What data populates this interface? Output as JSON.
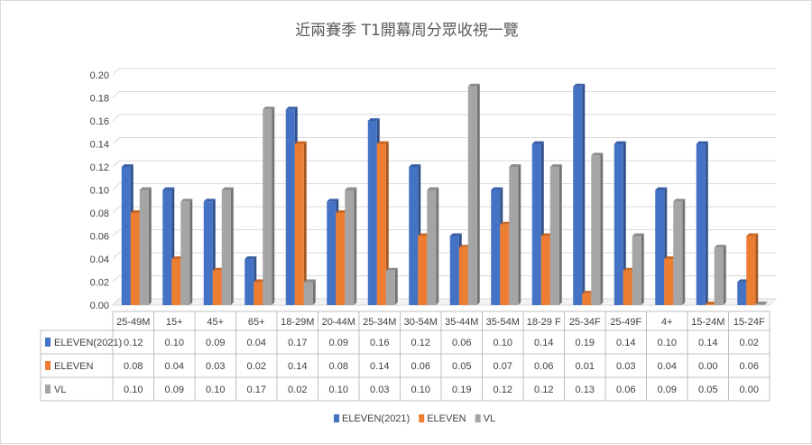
{
  "chart_data": {
    "type": "bar",
    "title": "近兩賽季 T1開幕周分眾收視一覽",
    "categories": [
      "25-49M",
      "15+",
      "45+",
      "65+",
      "18-29M",
      "20-44M",
      "25-34M",
      "30-54M",
      "35-44M",
      "35-54M",
      "18-29 F",
      "25-34F",
      "25-49F",
      "4+",
      "15-24M",
      "15-24F"
    ],
    "series": [
      {
        "name": "ELEVEN(2021)",
        "color": "#4472c4",
        "values": [
          0.12,
          0.1,
          0.09,
          0.04,
          0.17,
          0.09,
          0.16,
          0.12,
          0.06,
          0.1,
          0.14,
          0.19,
          0.14,
          0.1,
          0.14,
          0.02
        ]
      },
      {
        "name": "ELEVEN",
        "color": "#ed7d31",
        "values": [
          0.08,
          0.04,
          0.03,
          0.02,
          0.14,
          0.08,
          0.14,
          0.06,
          0.05,
          0.07,
          0.06,
          0.01,
          0.03,
          0.04,
          0.0,
          0.06
        ]
      },
      {
        "name": "VL",
        "color": "#a5a5a5",
        "values": [
          0.1,
          0.09,
          0.1,
          0.17,
          0.02,
          0.1,
          0.03,
          0.1,
          0.19,
          0.12,
          0.12,
          0.13,
          0.06,
          0.09,
          0.05,
          0.0
        ]
      }
    ],
    "ylim": [
      0,
      0.2
    ],
    "yticks": [
      "0.00",
      "0.02",
      "0.04",
      "0.06",
      "0.08",
      "0.10",
      "0.12",
      "0.14",
      "0.16",
      "0.18",
      "0.20"
    ],
    "table": [
      [
        "0.12",
        "0.10",
        "0.09",
        "0.04",
        "0.17",
        "0.09",
        "0.16",
        "0.12",
        "0.06",
        "0.10",
        "0.14",
        "0.19",
        "0.14",
        "0.10",
        "0.14",
        "0.02"
      ],
      [
        "0.08",
        "0.04",
        "0.03",
        "0.02",
        "0.14",
        "0.08",
        "0.14",
        "0.06",
        "0.05",
        "0.07",
        "0.06",
        "0.01",
        "0.03",
        "0.04",
        "0.00",
        "0.06"
      ],
      [
        "0.10",
        "0.09",
        "0.10",
        "0.17",
        "0.02",
        "0.10",
        "0.03",
        "0.10",
        "0.19",
        "0.12",
        "0.12",
        "0.13",
        "0.06",
        "0.09",
        "0.05",
        "0.00"
      ]
    ],
    "grid": true,
    "legend_position": "bottom",
    "style": "3d-clustered-column-with-data-table"
  }
}
